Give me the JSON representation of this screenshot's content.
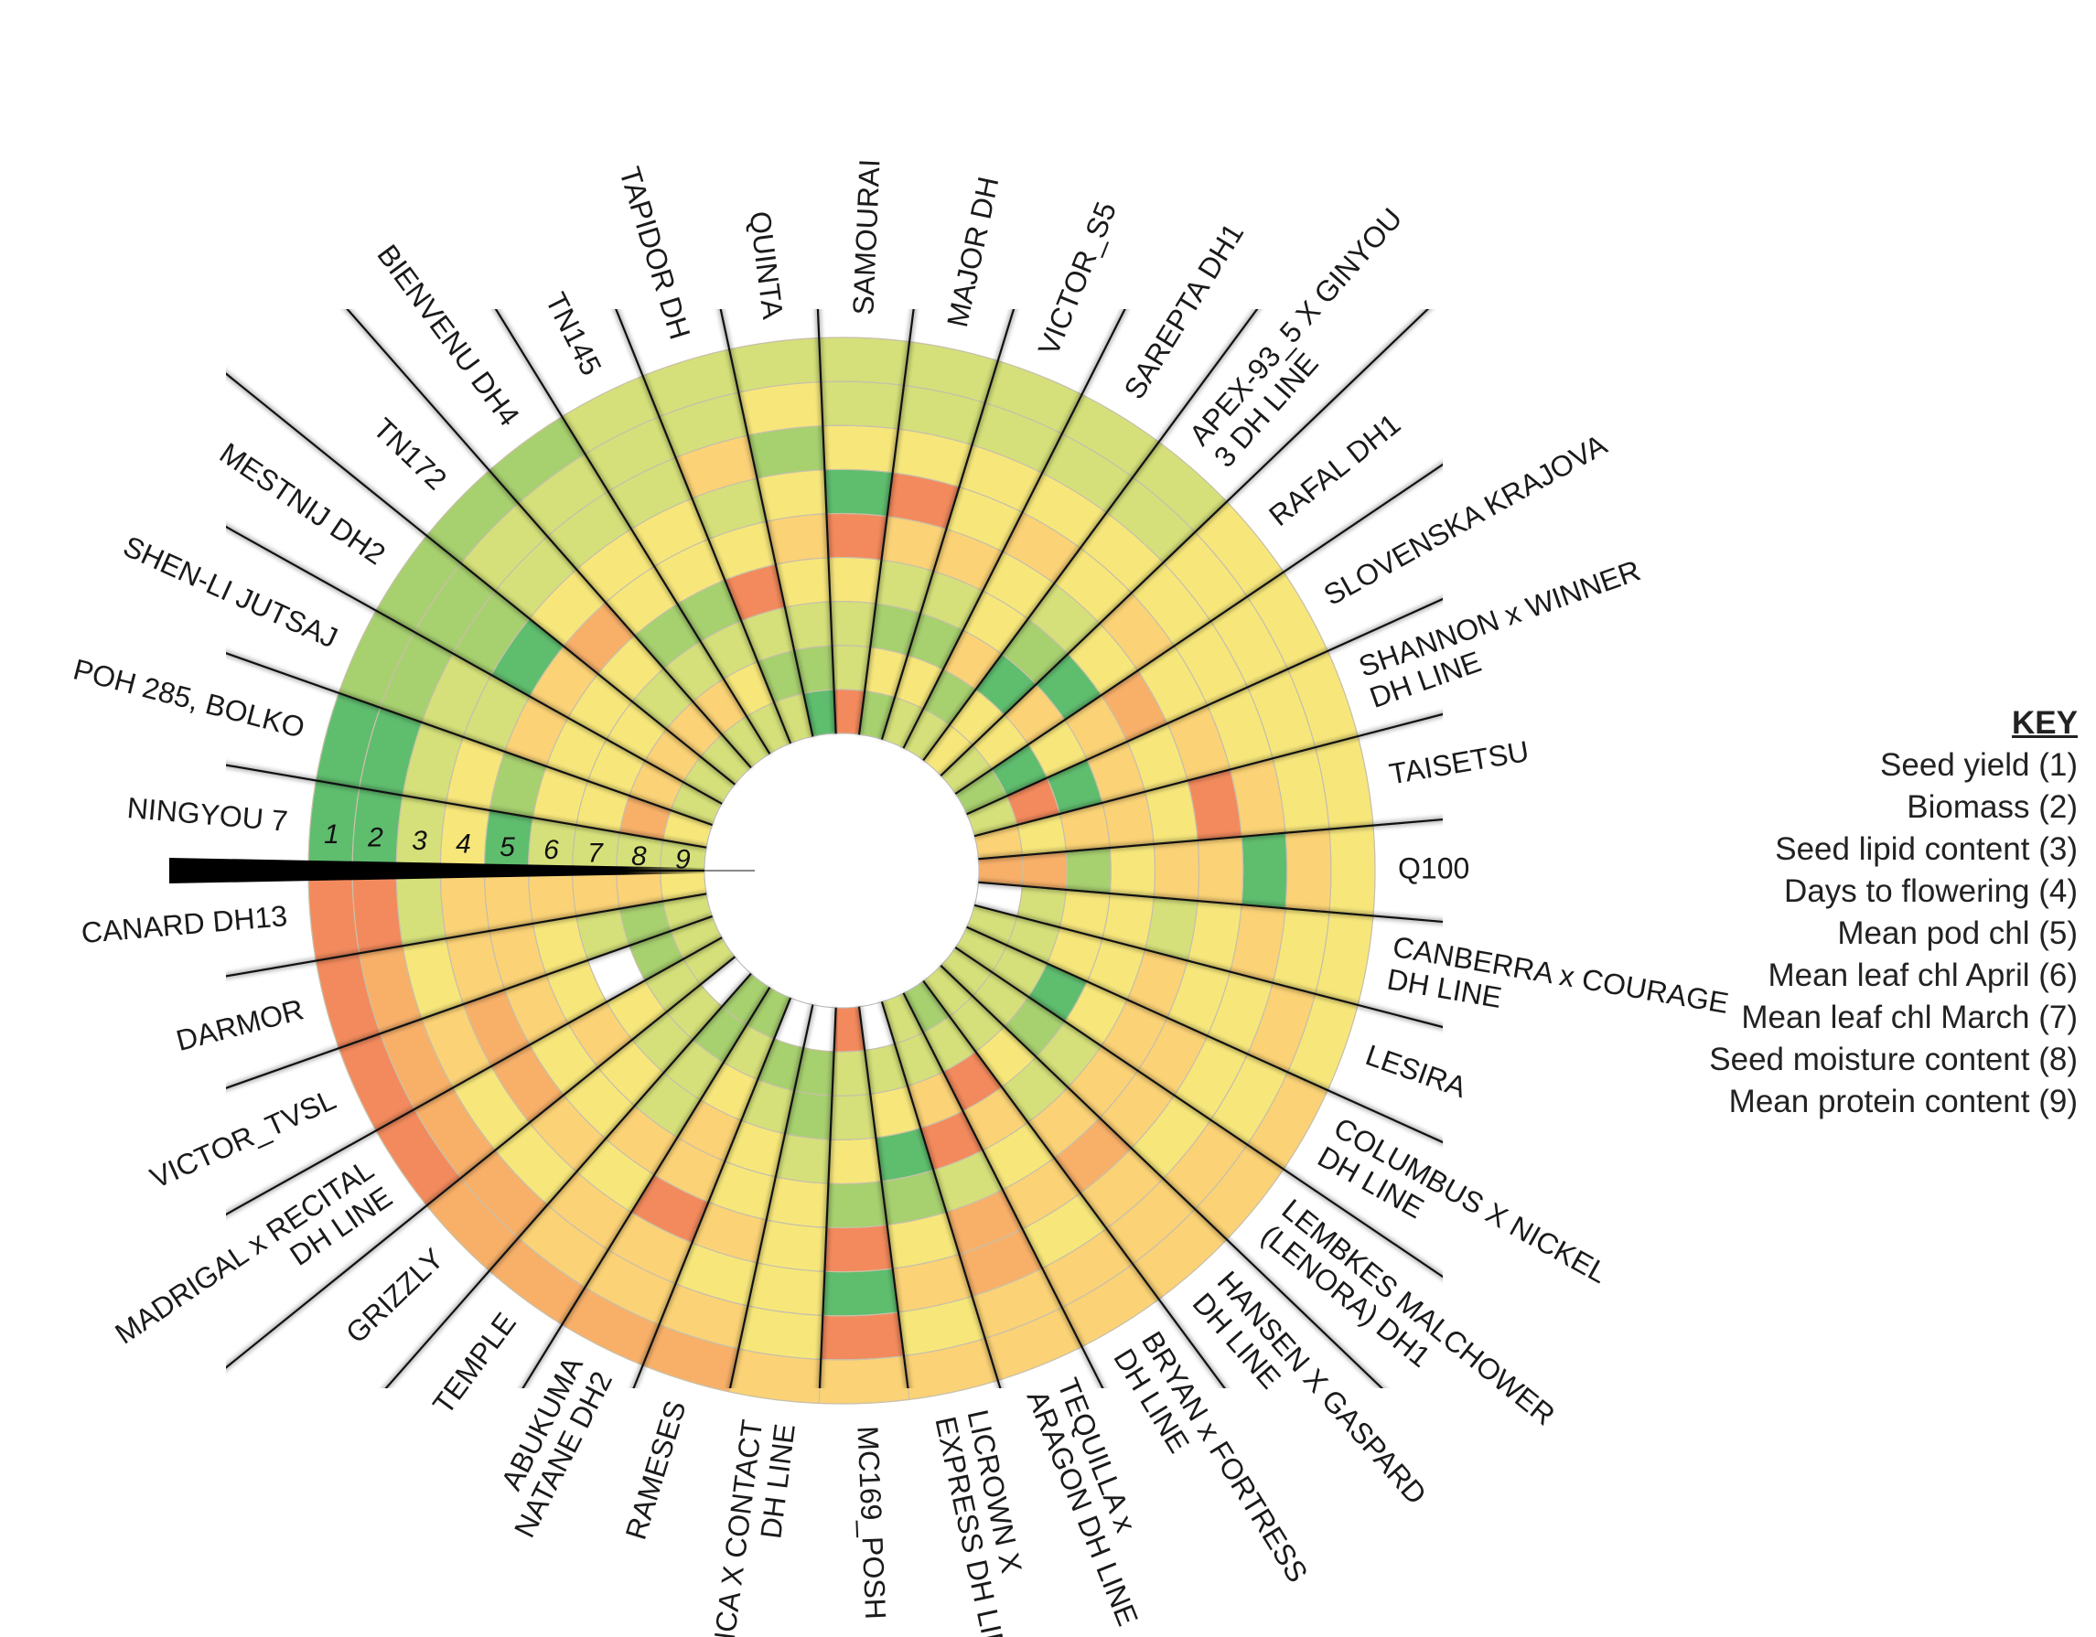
{
  "chart_data": {
    "type": "radial-heatmap",
    "title": "",
    "ring_labels": [
      "1",
      "2",
      "3",
      "4",
      "5",
      "6",
      "7",
      "8",
      "9"
    ],
    "key": {
      "title": "KEY",
      "items": [
        "Seed yield (1)",
        "Biomass (2)",
        "Seed lipid content (3)",
        "Days to flowering (4)",
        "Mean pod chl (5)",
        "Mean leaf chl April (6)",
        "Mean leaf chl March (7)",
        "Seed moisture content (8)",
        "Mean protein content (9)"
      ]
    },
    "scale_note": "Cell values are relative scores from 1 (red) to 7 (green); null = blank cell",
    "palette": [
      "#ec5a5c",
      "#f38a5d",
      "#f8b069",
      "#fbd276",
      "#f7e77b",
      "#d5e07a",
      "#a7d06f",
      "#5fbd6e"
    ],
    "varieties": [
      {
        "name": "CANARD DH13",
        "values": [
          1,
          1,
          5,
          3,
          3,
          3,
          3,
          3,
          4
        ]
      },
      {
        "name": "DARMOR",
        "values": [
          1,
          2,
          4,
          3,
          3,
          4,
          5,
          6,
          5
        ]
      },
      {
        "name": "VICTOR_TVSL",
        "values": [
          1,
          2,
          3,
          2,
          3,
          4,
          null,
          6,
          5
        ]
      },
      {
        "name": "MADRIGAL x RECITAL DH LINE",
        "values": [
          1,
          2,
          4,
          2,
          4,
          3,
          4,
          5,
          5
        ]
      },
      {
        "name": "GRIZZLY",
        "values": [
          2,
          2,
          4,
          3,
          4,
          4,
          5,
          5,
          null
        ]
      },
      {
        "name": "TEMPLE",
        "values": [
          2,
          3,
          3,
          4,
          3,
          5,
          5,
          6,
          6
        ]
      },
      {
        "name": "ABUKUMA NATANE DH2",
        "values": [
          2,
          3,
          3,
          1,
          3,
          3,
          4,
          5,
          6
        ]
      },
      {
        "name": "RAMESES",
        "values": [
          2,
          3,
          4,
          3,
          4,
          4,
          5,
          6,
          null
        ]
      },
      {
        "name": "INCA X CONTACT DH LINE",
        "values": [
          3,
          4,
          4,
          4,
          4,
          5,
          6,
          6,
          null
        ]
      },
      {
        "name": "MC169_POSH",
        "values": [
          3,
          1,
          7,
          1,
          6,
          4,
          5,
          5,
          1
        ]
      },
      {
        "name": "LICROWN X EXPRESS DH LINE",
        "values": [
          3,
          4,
          3,
          4,
          6,
          7,
          4,
          5,
          null
        ]
      },
      {
        "name": "TEQUILLA x ARAGON DH LINE",
        "values": [
          3,
          3,
          2,
          2,
          5,
          1,
          3,
          5,
          5
        ]
      },
      {
        "name": "BRYAN x FORTRESS DH LINE",
        "values": [
          3,
          3,
          4,
          3,
          4,
          3,
          1,
          5,
          6
        ]
      },
      {
        "name": "HANSEN X GASPARD DH LINE",
        "values": [
          3,
          3,
          3,
          2,
          3,
          5,
          4,
          5,
          5
        ]
      },
      {
        "name": "LEMBKES MALCHOWER (LENORA) DH1",
        "values": [
          3,
          3,
          4,
          3,
          3,
          5,
          6,
          5,
          5
        ]
      },
      {
        "name": "COLUMBUS X NICKEL DH LINE",
        "values": [
          3,
          4,
          4,
          3,
          3,
          4,
          7,
          5,
          5
        ]
      },
      {
        "name": "LESIRA",
        "values": [
          4,
          3,
          4,
          4,
          3,
          4,
          4,
          5,
          5
        ]
      },
      {
        "name": "CANBERRA x COURAGE DH LINE",
        "values": [
          4,
          4,
          3,
          4,
          5,
          4,
          4,
          5,
          null
        ]
      },
      {
        "name": "Q100",
        "values": [
          4,
          3,
          7,
          3,
          3,
          4,
          6,
          2,
          2
        ]
      },
      {
        "name": "TAISETSU",
        "values": [
          4,
          4,
          3,
          1,
          4,
          3,
          3,
          4,
          3
        ]
      },
      {
        "name": "SHANNON x WINNER DH LINE",
        "values": [
          4,
          4,
          4,
          3,
          4,
          3,
          7,
          1,
          5
        ]
      },
      {
        "name": "SLOVENSKA KRAJOVA",
        "values": [
          4,
          4,
          4,
          4,
          2,
          3,
          4,
          7,
          6
        ]
      },
      {
        "name": "RAFAL DH1",
        "values": [
          4,
          4,
          4,
          3,
          4,
          7,
          3,
          4,
          5
        ]
      },
      {
        "name": "APEX-93_5 X GINYOU 3 DH LINE",
        "values": [
          5,
          5,
          4,
          4,
          5,
          6,
          7,
          4,
          4
        ]
      },
      {
        "name": "SAREPTA DH1",
        "values": [
          5,
          5,
          4,
          3,
          4,
          4,
          3,
          6,
          5
        ]
      },
      {
        "name": "VICTOR_S5",
        "values": [
          5,
          5,
          4,
          4,
          3,
          5,
          6,
          4,
          5
        ]
      },
      {
        "name": "MAJOR DH",
        "values": [
          5,
          5,
          4,
          1,
          3,
          5,
          6,
          4,
          6
        ]
      },
      {
        "name": "SAMOURAI",
        "values": [
          5,
          5,
          4,
          7,
          1,
          4,
          5,
          5,
          1
        ]
      },
      {
        "name": "QUINTA",
        "values": [
          5,
          4,
          6,
          4,
          3,
          4,
          5,
          6,
          7
        ]
      },
      {
        "name": "TAPIDOR DH",
        "values": [
          5,
          5,
          3,
          5,
          4,
          1,
          5,
          6,
          5
        ]
      },
      {
        "name": "TN145",
        "values": [
          5,
          5,
          5,
          4,
          4,
          6,
          5,
          4,
          5
        ]
      },
      {
        "name": "BIENVENU DH4",
        "values": [
          6,
          5,
          5,
          4,
          4,
          6,
          5,
          3,
          5
        ]
      },
      {
        "name": "TN172",
        "values": [
          6,
          5,
          5,
          4,
          2,
          4,
          5,
          3,
          5
        ]
      },
      {
        "name": "MESTNIJ DH2",
        "values": [
          6,
          6,
          6,
          7,
          3,
          4,
          4,
          3,
          5
        ]
      },
      {
        "name": "SHEN-LI JUTSAJ",
        "values": [
          6,
          6,
          5,
          5,
          3,
          4,
          4,
          3,
          5
        ]
      },
      {
        "name": "POH 285, BOLKO",
        "values": [
          7,
          7,
          5,
          4,
          6,
          4,
          4,
          2,
          4
        ]
      },
      {
        "name": "NINGYOU 7",
        "values": [
          7,
          7,
          5,
          4,
          7,
          5,
          5,
          5,
          5
        ]
      }
    ]
  }
}
